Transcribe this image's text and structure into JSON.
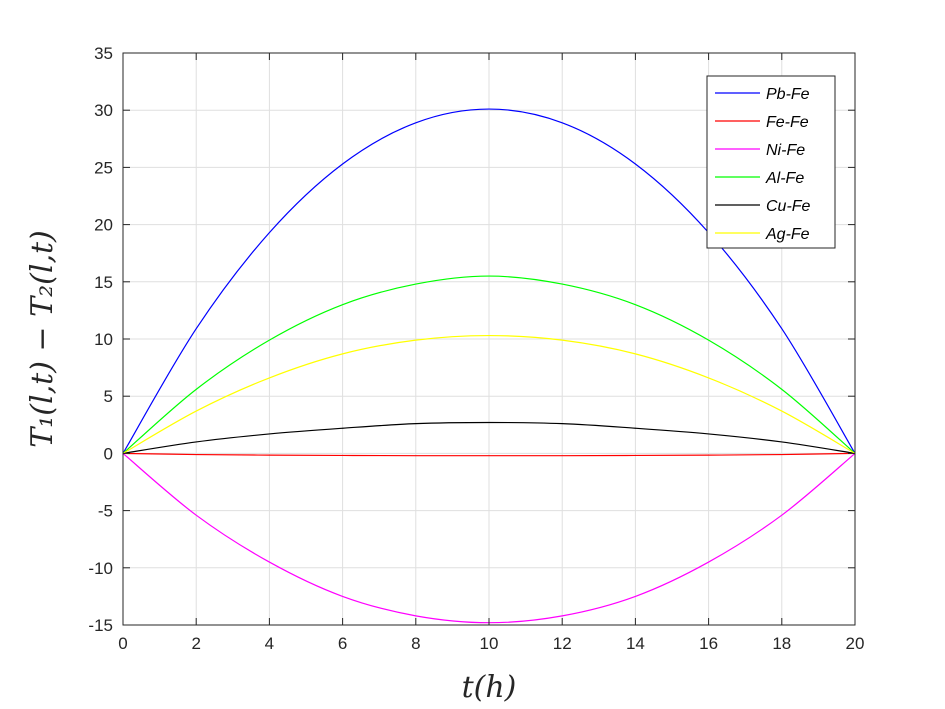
{
  "chart_data": {
    "type": "line",
    "title": "",
    "xlabel": "t(h)",
    "ylabel": "T₁(l,t) − T₂(l,t)",
    "xlim": [
      0,
      20
    ],
    "ylim": [
      -15,
      35
    ],
    "xticks": [
      0,
      2,
      4,
      6,
      8,
      10,
      12,
      14,
      16,
      18,
      20
    ],
    "yticks": [
      -15,
      -10,
      -5,
      0,
      5,
      10,
      15,
      20,
      25,
      30,
      35
    ],
    "grid": true,
    "legend_position": "top-right",
    "x": [
      0,
      2,
      4,
      6,
      8,
      10,
      12,
      14,
      16,
      18,
      20
    ],
    "series": [
      {
        "name": "Pb-Fe",
        "color": "#0000ff",
        "values": [
          0,
          10.9,
          19.3,
          25.3,
          28.9,
          30.1,
          28.9,
          25.3,
          19.3,
          10.9,
          0
        ]
      },
      {
        "name": "Fe-Fe",
        "color": "#ff0000",
        "values": [
          0,
          -0.1,
          -0.15,
          -0.18,
          -0.2,
          -0.2,
          -0.2,
          -0.18,
          -0.15,
          -0.1,
          0
        ]
      },
      {
        "name": "Ni-Fe",
        "color": "#ff00ff",
        "values": [
          0,
          -5.4,
          -9.5,
          -12.5,
          -14.2,
          -14.8,
          -14.2,
          -12.5,
          -9.5,
          -5.4,
          0
        ]
      },
      {
        "name": "Al-Fe",
        "color": "#00ff00",
        "values": [
          0,
          5.6,
          9.9,
          13.0,
          14.8,
          15.5,
          14.8,
          13.0,
          9.9,
          5.6,
          0
        ]
      },
      {
        "name": "Cu-Fe",
        "color": "#000000",
        "values": [
          0,
          1.0,
          1.7,
          2.2,
          2.6,
          2.7,
          2.6,
          2.2,
          1.7,
          1.0,
          0
        ]
      },
      {
        "name": "Ag-Fe",
        "color": "#ffff00",
        "values": [
          0,
          3.7,
          6.6,
          8.7,
          9.9,
          10.3,
          9.9,
          8.7,
          6.6,
          3.7,
          0
        ]
      }
    ]
  }
}
